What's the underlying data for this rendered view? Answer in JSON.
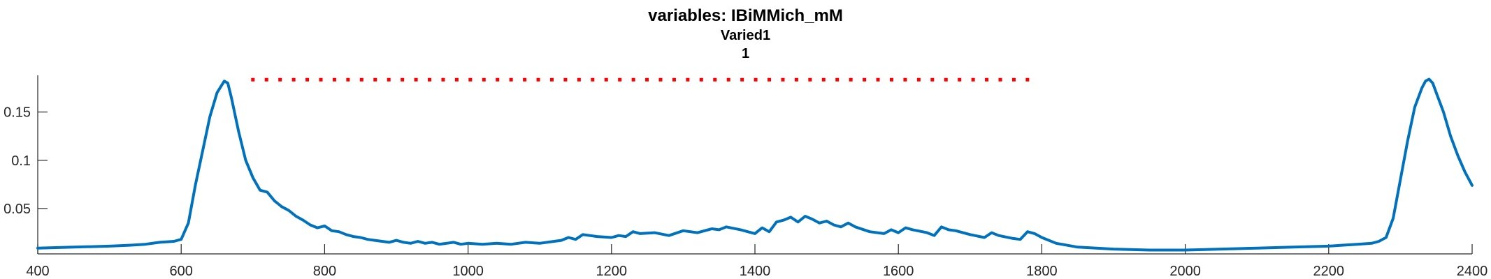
{
  "chart_data": {
    "type": "line",
    "title": "variables: IBiMMich_mM",
    "subtitle": [
      "Varied1",
      "1"
    ],
    "xlabel": "",
    "ylabel": "",
    "xlim": [
      400,
      2400
    ],
    "ylim": [
      0.003,
      0.188
    ],
    "grid": false,
    "x_ticks": [
      400,
      600,
      800,
      1000,
      1200,
      1400,
      1600,
      1800,
      2000,
      2200,
      2400
    ],
    "x_tick_labels": [
      "400",
      "600",
      "800",
      "1000",
      "1200",
      "1400",
      "1600",
      "1800",
      "2000",
      "2200",
      "2400"
    ],
    "y_ticks": [
      0.05,
      0.1,
      0.15
    ],
    "y_tick_labels": [
      "0.05",
      "0.1",
      "0.15"
    ],
    "series": [
      {
        "color": "#0072BD",
        "style": "solid",
        "x": [
          400,
          450,
          500,
          530,
          550,
          570,
          590,
          600,
          610,
          620,
          630,
          640,
          650,
          660,
          665,
          670,
          680,
          690,
          700,
          710,
          720,
          730,
          735,
          740,
          750,
          760,
          770,
          780,
          790,
          800,
          810,
          820,
          830,
          840,
          850,
          860,
          870,
          880,
          890,
          900,
          910,
          920,
          930,
          940,
          950,
          960,
          970,
          980,
          990,
          1000,
          1020,
          1040,
          1060,
          1080,
          1100,
          1120,
          1130,
          1140,
          1150,
          1160,
          1180,
          1200,
          1210,
          1220,
          1230,
          1240,
          1260,
          1280,
          1300,
          1320,
          1340,
          1350,
          1360,
          1380,
          1400,
          1410,
          1420,
          1430,
          1440,
          1450,
          1460,
          1470,
          1480,
          1490,
          1500,
          1510,
          1520,
          1530,
          1540,
          1560,
          1580,
          1590,
          1600,
          1610,
          1620,
          1640,
          1650,
          1660,
          1670,
          1680,
          1700,
          1720,
          1730,
          1740,
          1760,
          1770,
          1780,
          1790,
          1800,
          1820,
          1850,
          1900,
          1950,
          2000,
          2050,
          2100,
          2150,
          2200,
          2220,
          2240,
          2260,
          2270,
          2280,
          2290,
          2300,
          2310,
          2320,
          2330,
          2335,
          2340,
          2345,
          2350,
          2360,
          2370,
          2380,
          2390,
          2400
        ],
        "y": [
          0.009,
          0.01,
          0.011,
          0.012,
          0.013,
          0.015,
          0.016,
          0.018,
          0.035,
          0.075,
          0.11,
          0.145,
          0.17,
          0.182,
          0.18,
          0.165,
          0.13,
          0.1,
          0.082,
          0.069,
          0.067,
          0.058,
          0.055,
          0.052,
          0.048,
          0.042,
          0.038,
          0.033,
          0.03,
          0.032,
          0.027,
          0.026,
          0.023,
          0.021,
          0.02,
          0.018,
          0.017,
          0.016,
          0.015,
          0.017,
          0.015,
          0.014,
          0.016,
          0.014,
          0.015,
          0.013,
          0.014,
          0.015,
          0.013,
          0.014,
          0.013,
          0.014,
          0.013,
          0.015,
          0.014,
          0.016,
          0.017,
          0.02,
          0.018,
          0.023,
          0.021,
          0.02,
          0.022,
          0.021,
          0.026,
          0.024,
          0.025,
          0.022,
          0.027,
          0.025,
          0.029,
          0.028,
          0.031,
          0.028,
          0.024,
          0.03,
          0.026,
          0.036,
          0.038,
          0.041,
          0.036,
          0.042,
          0.039,
          0.035,
          0.037,
          0.033,
          0.031,
          0.035,
          0.031,
          0.026,
          0.024,
          0.028,
          0.025,
          0.03,
          0.028,
          0.025,
          0.022,
          0.031,
          0.028,
          0.027,
          0.023,
          0.02,
          0.025,
          0.022,
          0.019,
          0.018,
          0.026,
          0.024,
          0.02,
          0.014,
          0.01,
          0.008,
          0.007,
          0.007,
          0.008,
          0.009,
          0.01,
          0.011,
          0.012,
          0.013,
          0.014,
          0.016,
          0.02,
          0.04,
          0.08,
          0.12,
          0.155,
          0.175,
          0.182,
          0.184,
          0.18,
          0.17,
          0.15,
          0.125,
          0.105,
          0.088,
          0.074
        ]
      },
      {
        "color": "#FF0000",
        "style": "dotted",
        "x": [
          700,
          1780
        ],
        "y": [
          0.1835,
          0.1835
        ]
      }
    ]
  }
}
